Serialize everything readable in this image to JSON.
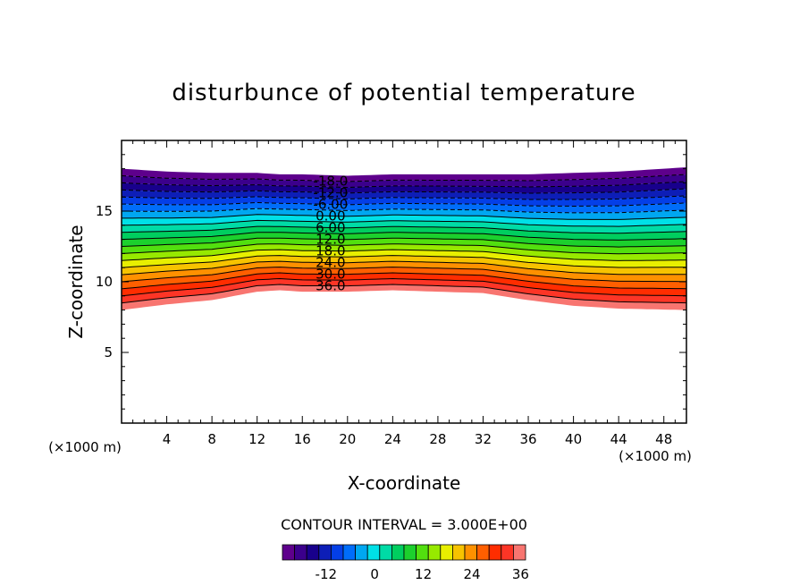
{
  "chart_data": {
    "type": "contour",
    "title": "disturbunce of potential temperature",
    "xlabel": "X-coordinate",
    "ylabel": "Z-coordinate",
    "x_unit_left": "(×1000 m)",
    "x_unit_right": "(×1000 m)",
    "xlim": [
      0,
      50
    ],
    "ylim": [
      0,
      20
    ],
    "x_ticks": [
      4,
      8,
      12,
      16,
      20,
      24,
      28,
      32,
      36,
      40,
      44,
      48
    ],
    "y_ticks": [
      5,
      10,
      15
    ],
    "contour_interval_label": "CONTOUR INTERVAL = 3.000E+00",
    "contour_interval": 3,
    "value_range": [
      -21,
      39
    ],
    "negative_contours_dashed": true,
    "contour_labels": [
      "-18.0",
      "-12.0",
      "-6.00",
      "0.00",
      "6.00",
      "12.0",
      "18.0",
      "24.0",
      "30.0",
      "36.0"
    ],
    "contour_label_values": [
      -18,
      -12,
      -6,
      0,
      6,
      12,
      18,
      24,
      30,
      36
    ],
    "colorbar_ticks": [
      "-12",
      "0",
      "12",
      "24",
      "36"
    ],
    "colorbar_tick_values": [
      -12,
      0,
      12,
      24,
      36
    ],
    "colormap": "rainbow (purple → blue → cyan → green → yellow → orange → red → pink)",
    "field_bottom_z": [
      8.0,
      8.4,
      8.7,
      9.3,
      9.4,
      9.3,
      9.3,
      9.4,
      9.2,
      8.7,
      8.3,
      8.1,
      8.0
    ],
    "field_top_z": [
      18.0,
      17.8,
      17.7,
      17.7,
      17.6,
      17.6,
      17.5,
      17.6,
      17.6,
      17.6,
      17.7,
      17.8,
      18.1
    ],
    "profile_x": [
      0,
      4,
      8,
      12,
      14,
      16,
      20,
      24,
      32,
      36,
      40,
      44,
      50
    ]
  }
}
